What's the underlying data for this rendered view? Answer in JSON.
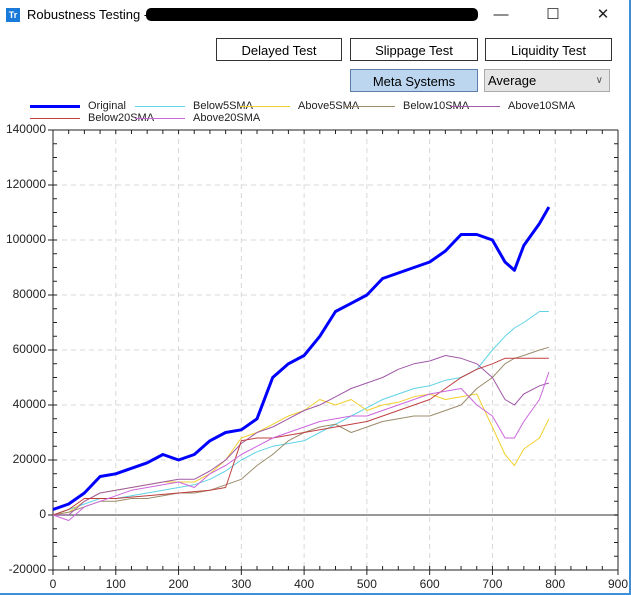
{
  "window": {
    "title": "Robustness Testing -",
    "icon_label": "Tr",
    "minimize_icon": "minimize-icon",
    "maximize_icon": "maximize-icon",
    "close_icon": "close-icon",
    "minimize_glyph": "—",
    "maximize_glyph": "☐",
    "close_glyph": "✕"
  },
  "toolbar": {
    "delayed_test": "Delayed Test",
    "slippage_test": "Slippage Test",
    "liquidity_test": "Liquidity Test",
    "meta_systems": "Meta Systems",
    "mode_select": {
      "value": "Average",
      "chevron": "∨"
    }
  },
  "chart_data": {
    "type": "line",
    "title": "",
    "xlabel": "",
    "ylabel": "",
    "xlim": [
      0,
      900
    ],
    "ylim": [
      -20000,
      140000
    ],
    "xticks": [
      0,
      100,
      200,
      300,
      400,
      500,
      600,
      700,
      800,
      900
    ],
    "yticks": [
      -20000,
      0,
      20000,
      40000,
      60000,
      80000,
      100000,
      120000,
      140000
    ],
    "grid": true,
    "legend_position": "top",
    "x": [
      0,
      25,
      50,
      75,
      100,
      125,
      150,
      175,
      200,
      225,
      250,
      275,
      300,
      325,
      350,
      375,
      400,
      425,
      450,
      475,
      500,
      525,
      550,
      575,
      600,
      625,
      650,
      675,
      700,
      720,
      735,
      750,
      775,
      790
    ],
    "series": [
      {
        "name": "Original",
        "color": "#0000ff",
        "width": 3,
        "values": [
          2000,
          4000,
          8000,
          14000,
          15000,
          17000,
          19000,
          22000,
          20000,
          22000,
          27000,
          30000,
          31000,
          35000,
          50000,
          55000,
          58000,
          65000,
          74000,
          77000,
          80000,
          86000,
          88000,
          90000,
          92000,
          96000,
          102000,
          102000,
          100000,
          92000,
          89000,
          98000,
          106000,
          112000
        ]
      },
      {
        "name": "Below5SMA",
        "color": "#5fd3e6",
        "width": 1,
        "values": [
          0,
          2000,
          4000,
          6000,
          6000,
          7000,
          8000,
          9000,
          10000,
          11000,
          13000,
          16000,
          20000,
          23000,
          25000,
          26000,
          27000,
          30000,
          33000,
          36000,
          39000,
          42000,
          44000,
          46000,
          47000,
          49000,
          50000,
          53000,
          60000,
          65000,
          68000,
          70000,
          74000,
          74000
        ]
      },
      {
        "name": "Above5SMA",
        "color": "#f0d030",
        "width": 1,
        "values": [
          0,
          1000,
          5000,
          8000,
          9000,
          10000,
          11000,
          12000,
          12000,
          12000,
          15000,
          20000,
          28000,
          30000,
          33000,
          36000,
          38000,
          42000,
          40000,
          42000,
          38000,
          40000,
          41000,
          43000,
          44000,
          42000,
          43000,
          44000,
          32000,
          22000,
          18000,
          24000,
          28000,
          35000
        ]
      },
      {
        "name": "Below10SMA",
        "color": "#9b8c6c",
        "width": 1,
        "values": [
          0,
          1000,
          3000,
          5000,
          5000,
          6000,
          6000,
          7000,
          8000,
          8000,
          9000,
          11000,
          13000,
          18000,
          22000,
          27000,
          30000,
          32000,
          33000,
          30000,
          32000,
          34000,
          35000,
          36000,
          36000,
          38000,
          40000,
          46000,
          50000,
          55000,
          57000,
          58000,
          60000,
          61000
        ]
      },
      {
        "name": "Above10SMA",
        "color": "#a05aa8",
        "width": 1,
        "values": [
          0,
          0,
          5000,
          8000,
          9000,
          10000,
          11000,
          12000,
          13000,
          13000,
          16000,
          20000,
          26000,
          30000,
          32000,
          35000,
          38000,
          40000,
          43000,
          46000,
          48000,
          50000,
          53000,
          55000,
          56000,
          58000,
          57000,
          55000,
          50000,
          42000,
          40000,
          44000,
          47000,
          48000
        ]
      },
      {
        "name": "Below20SMA",
        "color": "#c04040",
        "width": 1,
        "values": [
          0,
          2000,
          6000,
          6000,
          6000,
          6500,
          7000,
          7500,
          8000,
          8500,
          9000,
          10000,
          27000,
          28000,
          28000,
          29000,
          30000,
          31000,
          32000,
          33000,
          34000,
          36000,
          38000,
          40000,
          42000,
          46000,
          50000,
          53000,
          55000,
          57000,
          57000,
          57000,
          57000,
          57000
        ]
      },
      {
        "name": "Above20SMA",
        "color": "#cc66dd",
        "width": 1,
        "values": [
          0,
          -2000,
          3000,
          5000,
          7000,
          9000,
          10000,
          11000,
          12000,
          10000,
          15000,
          18000,
          22000,
          25000,
          28000,
          30000,
          32000,
          34000,
          35000,
          36000,
          36000,
          38000,
          40000,
          42000,
          44000,
          45000,
          46000,
          40000,
          36000,
          28000,
          28000,
          34000,
          42000,
          52000
        ]
      }
    ]
  }
}
